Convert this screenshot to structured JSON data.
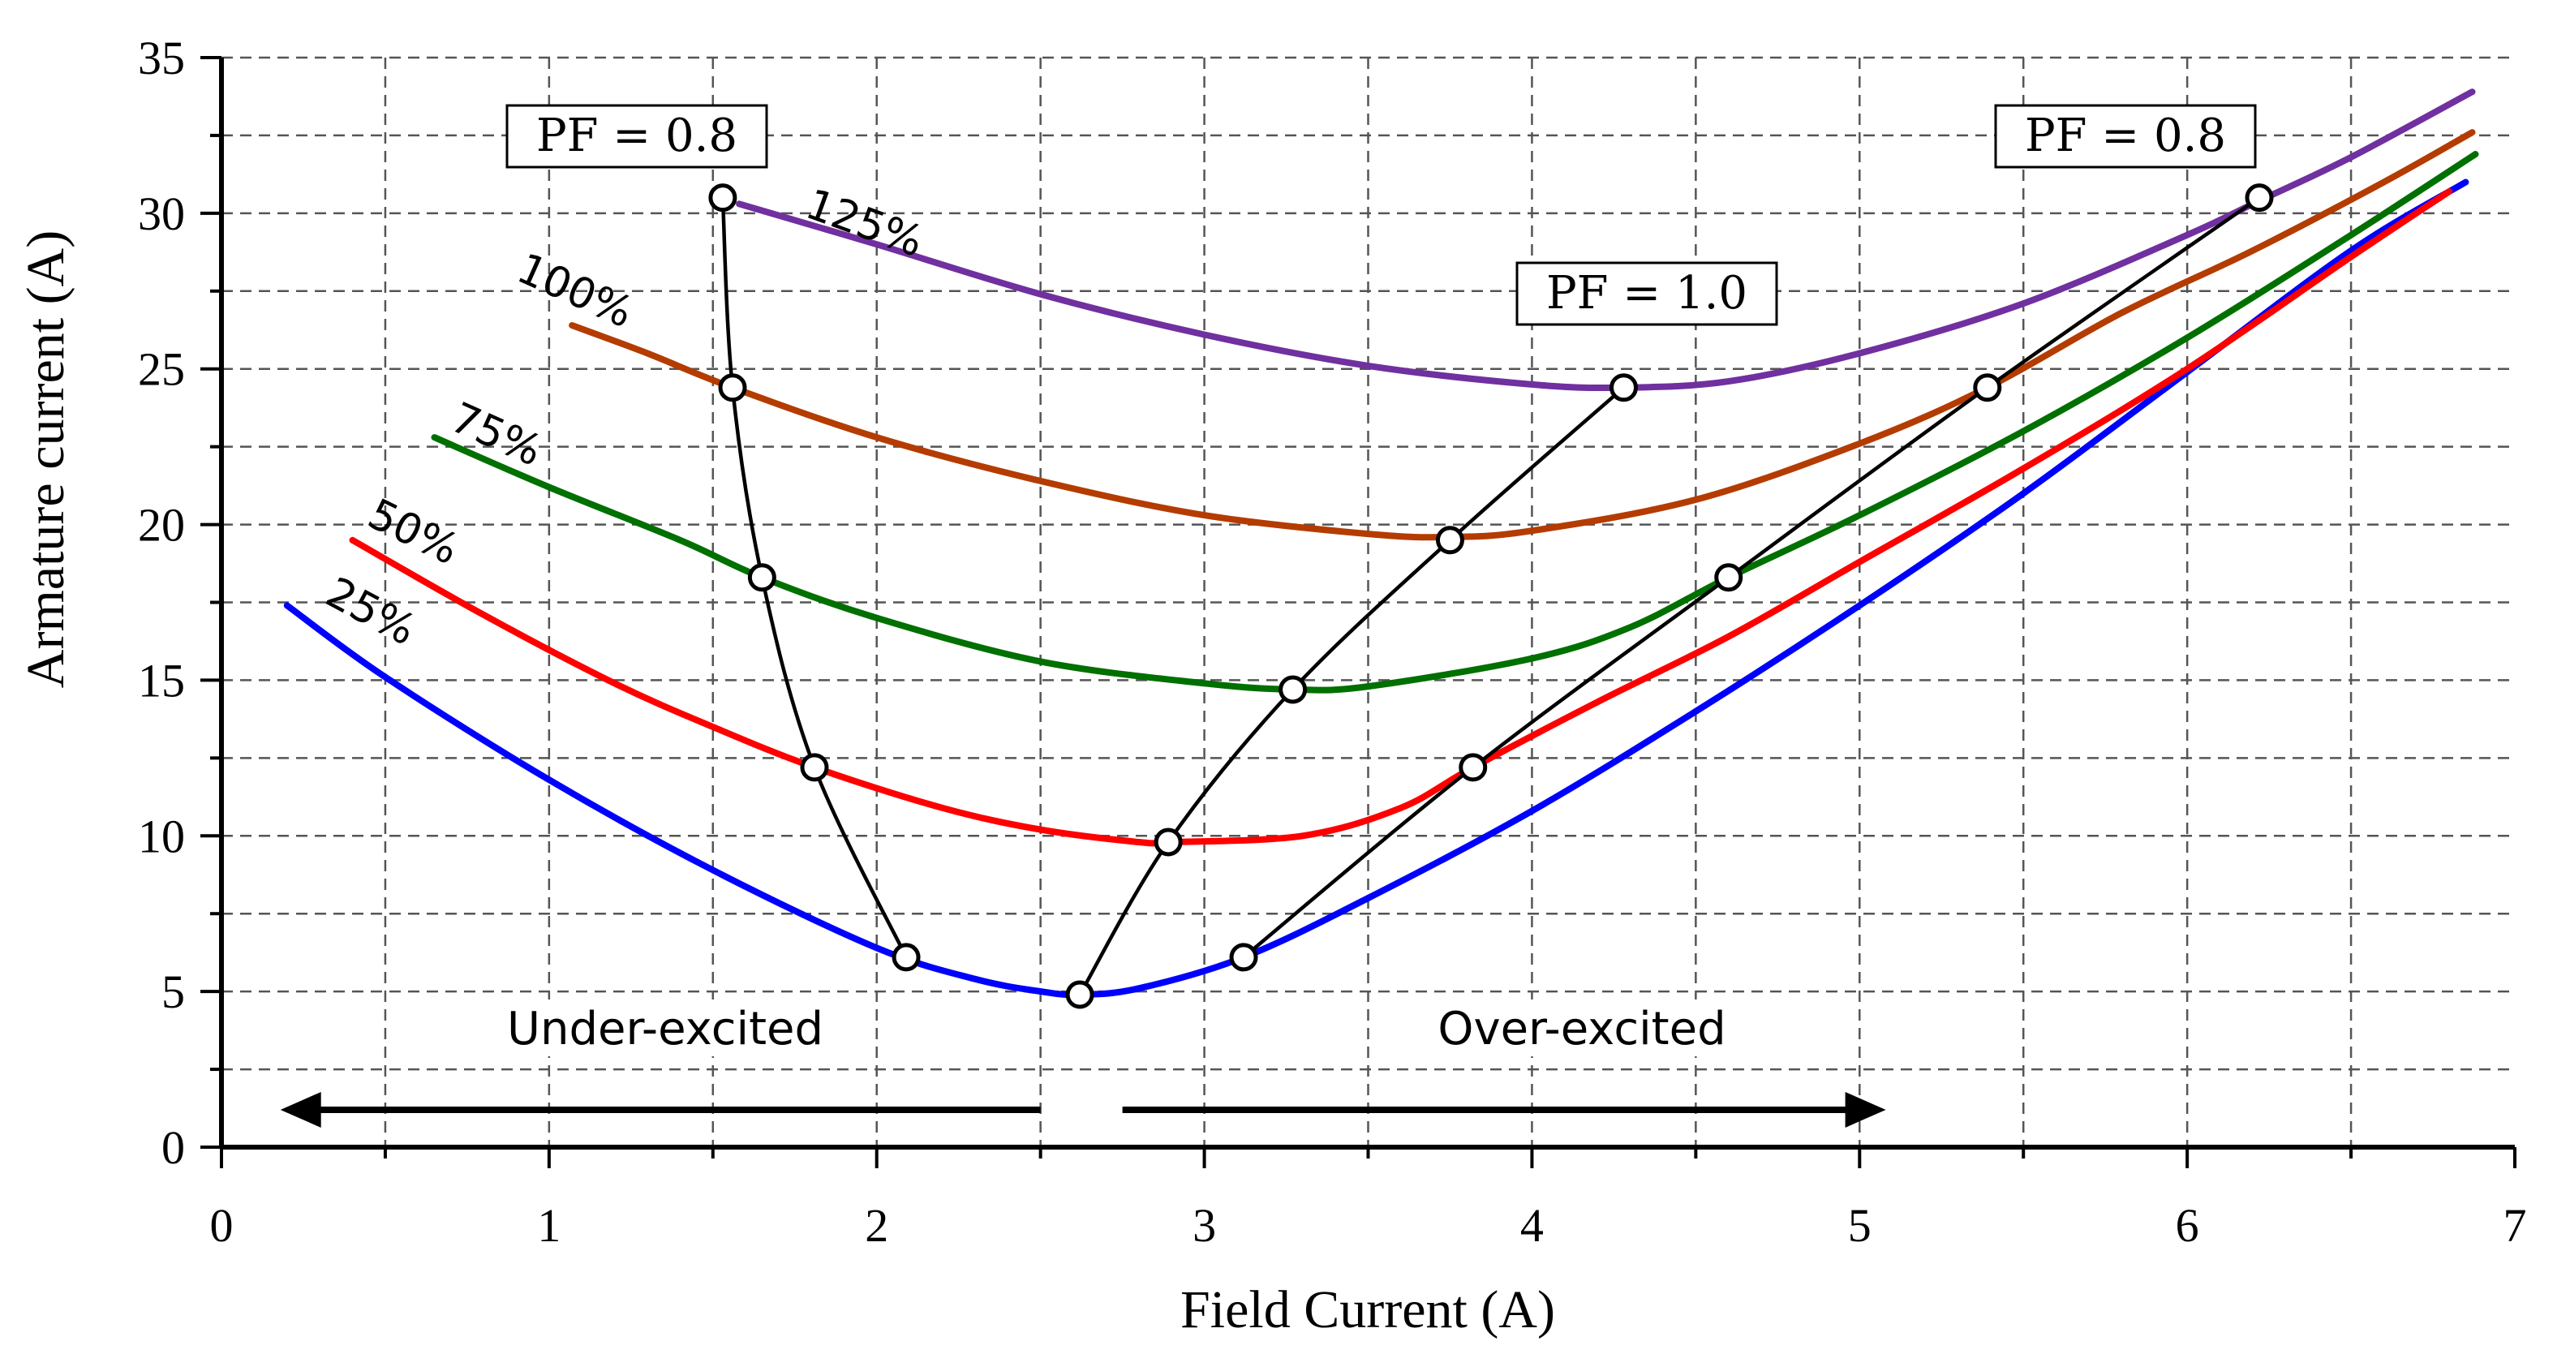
{
  "chart_data": {
    "type": "line",
    "title": "",
    "xlabel": "Field Current (A)",
    "ylabel": "Armature current (A)",
    "xlim": [
      0,
      7
    ],
    "ylim": [
      0,
      35
    ],
    "x_ticks": [
      "0",
      "1",
      "2",
      "3",
      "4",
      "5",
      "6",
      "7"
    ],
    "y_ticks": [
      "0",
      "5",
      "10",
      "15",
      "20",
      "25",
      "30",
      "35"
    ],
    "grid": true,
    "series": [
      {
        "name": "25%",
        "label": "25%",
        "color": "#0000ff",
        "x": [
          0.2,
          0.5,
          1.0,
          1.5,
          2.0,
          2.3,
          2.5,
          2.62,
          2.8,
          3.12,
          3.5,
          4.0,
          4.5,
          5.0,
          5.5,
          6.0,
          6.5,
          6.85
        ],
        "y": [
          17.4,
          15.1,
          11.8,
          8.9,
          6.4,
          5.4,
          5.0,
          4.9,
          5.1,
          6.1,
          8.0,
          10.8,
          14.0,
          17.4,
          21.0,
          24.9,
          28.8,
          31.0
        ]
      },
      {
        "name": "50%",
        "label": "50%",
        "color": "#ff0000",
        "x": [
          0.4,
          0.8,
          1.2,
          1.5,
          1.81,
          2.2,
          2.5,
          2.8,
          2.9,
          3.3,
          3.6,
          3.82,
          4.2,
          4.6,
          5.0,
          5.5,
          6.0,
          6.5,
          6.8
        ],
        "y": [
          19.5,
          17.1,
          14.9,
          13.5,
          12.2,
          10.9,
          10.2,
          9.8,
          9.8,
          10.0,
          10.9,
          12.2,
          14.3,
          16.4,
          18.8,
          21.8,
          25.0,
          28.6,
          30.7
        ]
      },
      {
        "name": "75%",
        "label": "75%",
        "color": "#007000",
        "x": [
          0.65,
          1.0,
          1.4,
          1.65,
          2.0,
          2.5,
          3.0,
          3.27,
          3.5,
          4.0,
          4.3,
          4.6,
          5.0,
          5.5,
          6.0,
          6.5,
          6.88
        ],
        "y": [
          22.8,
          21.2,
          19.5,
          18.3,
          17.0,
          15.6,
          14.9,
          14.7,
          14.8,
          15.7,
          16.7,
          18.3,
          20.3,
          23.0,
          26.0,
          29.3,
          31.9
        ]
      },
      {
        "name": "100%",
        "label": "100%",
        "color": "#b43c00",
        "x": [
          1.07,
          1.3,
          1.56,
          2.0,
          2.5,
          3.0,
          3.5,
          3.75,
          4.0,
          4.5,
          5.0,
          5.39,
          5.8,
          6.2,
          6.6,
          6.87
        ],
        "y": [
          26.4,
          25.5,
          24.4,
          22.8,
          21.4,
          20.3,
          19.7,
          19.6,
          19.8,
          20.8,
          22.6,
          24.4,
          26.8,
          28.8,
          31.0,
          32.6
        ]
      },
      {
        "name": "125%",
        "label": "125%",
        "color": "#7030a0",
        "x": [
          1.58,
          2.0,
          2.5,
          3.0,
          3.5,
          4.0,
          4.28,
          4.6,
          5.0,
          5.5,
          6.0,
          6.22,
          6.5,
          6.87
        ],
        "y": [
          30.3,
          29.0,
          27.4,
          26.1,
          25.1,
          24.5,
          24.4,
          24.6,
          25.5,
          27.1,
          29.3,
          30.4,
          31.8,
          33.9
        ]
      }
    ],
    "locus_lines": [
      {
        "name": "PF = 0.8 (under-excited)",
        "label": "PF = 0.8",
        "x": [
          1.53,
          1.56,
          1.65,
          1.81,
          2.09
        ],
        "y": [
          30.5,
          24.4,
          18.3,
          12.2,
          6.1
        ]
      },
      {
        "name": "PF = 1.0",
        "label": "PF = 1.0",
        "x": [
          2.62,
          2.89,
          3.27,
          3.75,
          4.28
        ],
        "y": [
          4.9,
          9.8,
          14.7,
          19.5,
          24.4
        ]
      },
      {
        "name": "PF = 0.8 (over-excited)",
        "label": "PF = 0.8",
        "x": [
          3.12,
          3.82,
          4.6,
          5.39,
          6.22
        ],
        "y": [
          6.1,
          12.2,
          18.3,
          24.4,
          30.5
        ]
      }
    ],
    "annotations": {
      "regions": [
        "Under-excited",
        "Over-excited"
      ],
      "arrow_under_excited": {
        "from_x": 2.5,
        "to_x": 0.18,
        "y": 1.2
      },
      "arrow_over_excited": {
        "from_x": 2.75,
        "to_x": 5.08,
        "y": 1.2
      }
    }
  },
  "colors": {
    "axis": "#000000",
    "grid": "#555555",
    "locus": "#000000"
  }
}
